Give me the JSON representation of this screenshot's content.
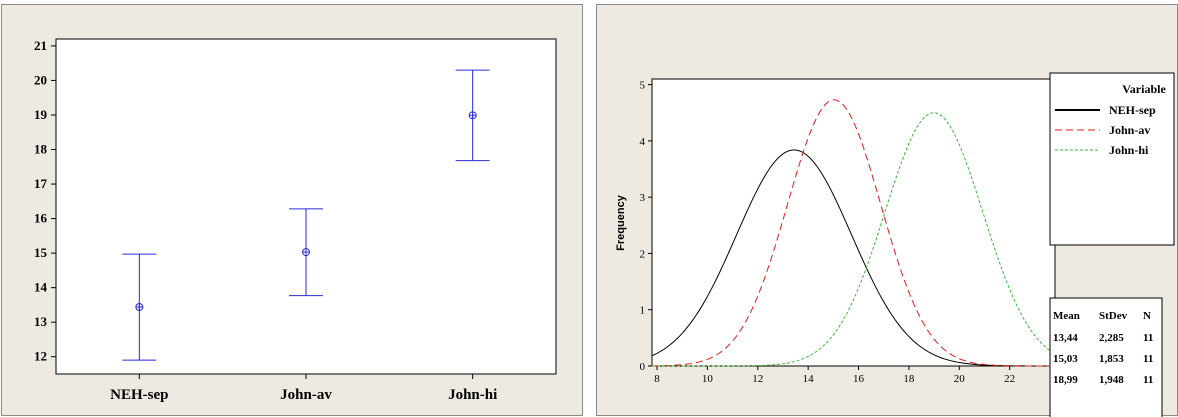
{
  "chart_data": [
    {
      "type": "interval",
      "title": "",
      "xlabel": "",
      "ylabel": "",
      "categories": [
        "NEH-sep",
        "John-av",
        "John-hi"
      ],
      "ylim": [
        11.5,
        21.2
      ],
      "yticks": [
        12,
        13,
        14,
        15,
        16,
        17,
        18,
        19,
        20,
        21
      ],
      "means": [
        13.44,
        15.03,
        18.99
      ],
      "lower": [
        11.9,
        13.77,
        17.68
      ],
      "upper": [
        14.97,
        16.28,
        20.3
      ],
      "grid": false,
      "colors": {
        "interval": "#2b2bd6",
        "plot_bg": "#ffffff",
        "panel_bg": "#efeae1"
      }
    },
    {
      "type": "line",
      "title": "",
      "xlabel": "",
      "ylabel": "Frequency",
      "xlim": [
        7.8,
        23.8
      ],
      "ylim": [
        0,
        5.1
      ],
      "xticks": [
        8,
        10,
        12,
        14,
        16,
        18,
        20,
        22
      ],
      "yticks": [
        0,
        1,
        2,
        3,
        4,
        5
      ],
      "grid": false,
      "legend": {
        "title": "Variable",
        "placement": "right",
        "entries": [
          "NEH-sep",
          "John-av",
          "John-hi"
        ]
      },
      "series": [
        {
          "name": "NEH-sep",
          "mean": 13.44,
          "stdev": 2.285,
          "n": 11,
          "peak": 3.84,
          "color": "#000000",
          "dash": ""
        },
        {
          "name": "John-av",
          "mean": 15.03,
          "stdev": 1.853,
          "n": 11,
          "peak": 4.73,
          "color": "#e8191b",
          "dash": "7,4"
        },
        {
          "name": "John-hi",
          "mean": 18.99,
          "stdev": 1.948,
          "n": 11,
          "peak": 4.5,
          "color": "#3cb83c",
          "dash": "3,2"
        }
      ],
      "stats_table": {
        "headers": [
          "Mean",
          "StDev",
          "N"
        ],
        "rows": [
          [
            "13,44",
            "2,285",
            "11"
          ],
          [
            "15,03",
            "1,853",
            "11"
          ],
          [
            "18,99",
            "1,948",
            "11"
          ]
        ]
      }
    }
  ]
}
